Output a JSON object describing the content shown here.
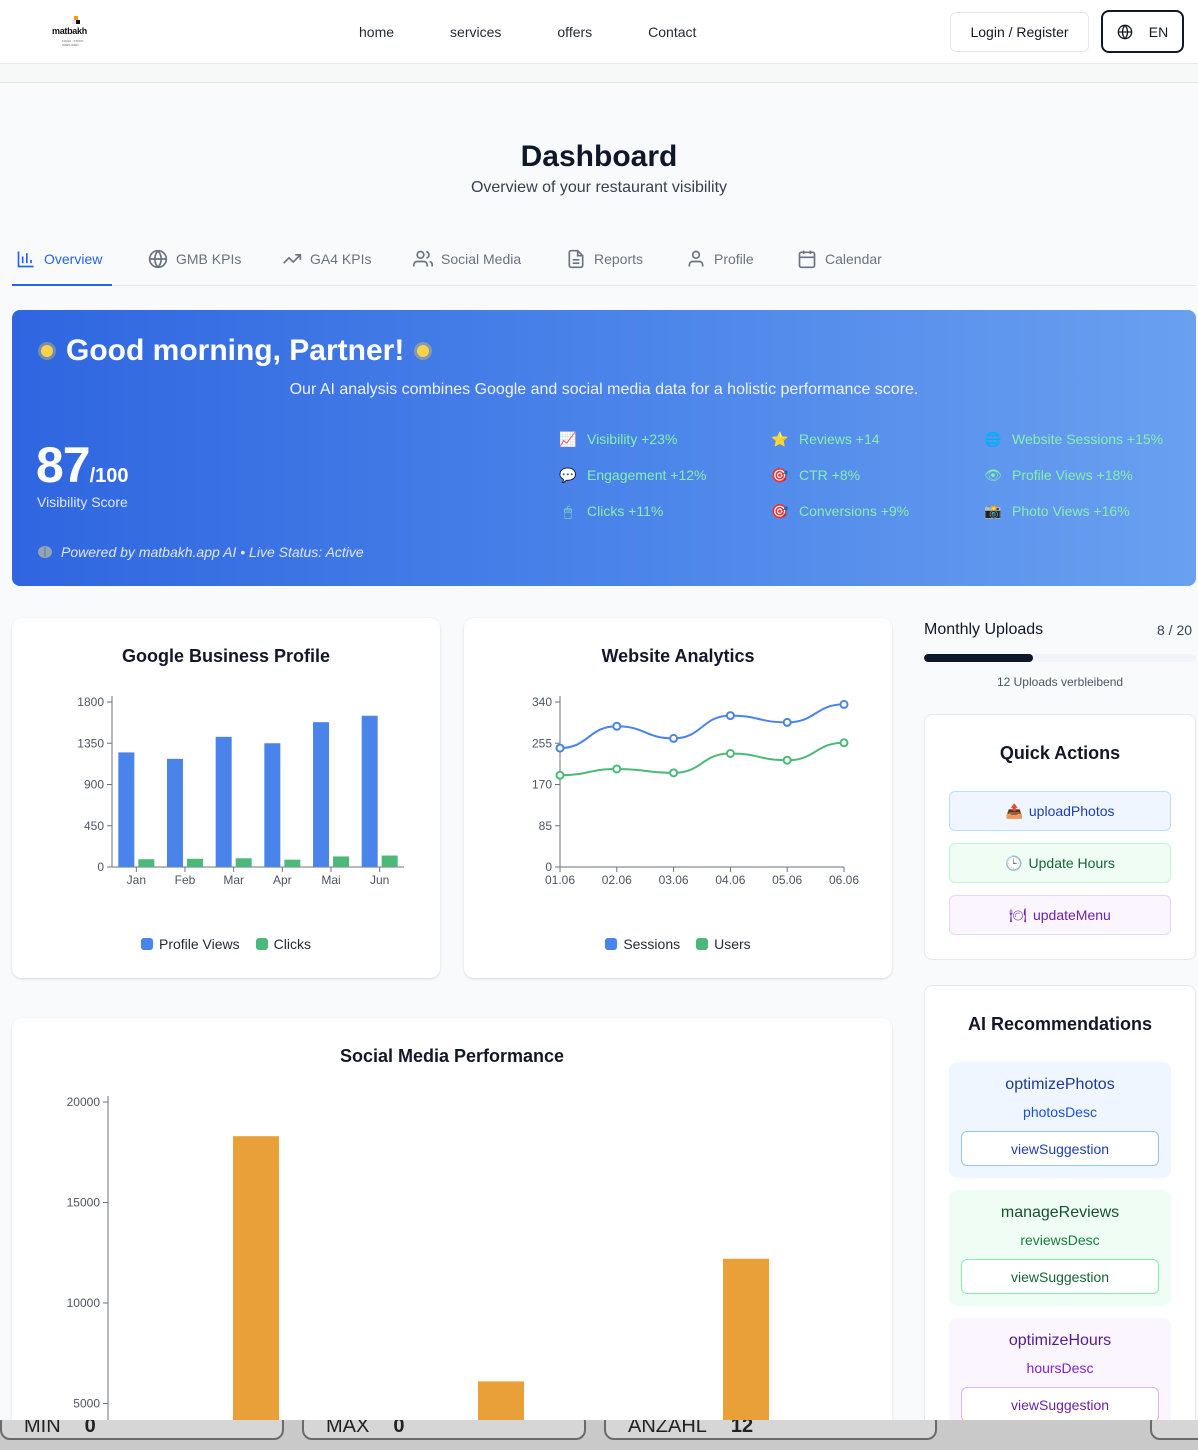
{
  "nav": {
    "logo_text": "matbakh",
    "logo_tagline": "FOOD · STORY · SIMPLIFIED",
    "links": [
      "home",
      "services",
      "offers",
      "Contact"
    ],
    "login_label": "Login / Register",
    "language": "EN"
  },
  "page": {
    "title": "Dashboard",
    "subtitle": "Overview of your restaurant visibility"
  },
  "tabs": [
    {
      "label": "Overview",
      "icon": "bar-chart-icon",
      "active": true
    },
    {
      "label": "GMB KPIs",
      "icon": "globe-icon"
    },
    {
      "label": "GA4 KPIs",
      "icon": "trending-up-icon"
    },
    {
      "label": "Social Media",
      "icon": "users-icon"
    },
    {
      "label": "Reports",
      "icon": "file-text-icon"
    },
    {
      "label": "Profile",
      "icon": "user-icon"
    },
    {
      "label": "Calendar",
      "icon": "calendar-icon"
    }
  ],
  "hero": {
    "greeting": "Good morning, Partner!",
    "description": "Our AI analysis combines Google and social media data for a holistic performance score.",
    "score": "87",
    "score_max": "/100",
    "score_label": "Visibility Score",
    "powered": "Powered by matbakh.app AI • Live Status: Active",
    "metrics": [
      {
        "icon": "chart-increasing-icon",
        "glyph": "📈",
        "label": "Visibility +23%"
      },
      {
        "icon": "star-icon",
        "glyph": "⭐",
        "label": "Reviews +14"
      },
      {
        "icon": "globe-icon",
        "glyph": "🌐",
        "label": "Website Sessions +15%"
      },
      {
        "icon": "speech-bubble-icon",
        "glyph": "💬",
        "label": "Engagement +12%"
      },
      {
        "icon": "target-icon",
        "glyph": "🎯",
        "label": "CTR +8%"
      },
      {
        "icon": "eye-icon",
        "glyph": "👁",
        "label": "Profile Views +18%"
      },
      {
        "icon": "mouse-icon",
        "glyph": "🖱",
        "label": "Clicks +11%"
      },
      {
        "icon": "target-icon",
        "glyph": "🎯",
        "label": "Conversions +9%"
      },
      {
        "icon": "camera-icon",
        "glyph": "📸",
        "label": "Photo Views +16%"
      }
    ]
  },
  "uploads": {
    "title": "Monthly Uploads",
    "count": "8 / 20",
    "progress": 0.4,
    "remaining": "12 Uploads verbleibend"
  },
  "quick_actions": {
    "title": "Quick Actions",
    "items": [
      {
        "label": "uploadPhotos",
        "glyph": "📤"
      },
      {
        "label": "Update Hours",
        "glyph": "🕒"
      },
      {
        "label": "updateMenu",
        "glyph": "🍽"
      }
    ]
  },
  "ai_recommendations": {
    "title": "AI Recommendations",
    "items": [
      {
        "title": "optimizePhotos",
        "desc": "photosDesc",
        "button": "viewSuggestion"
      },
      {
        "title": "manageReviews",
        "desc": "reviewsDesc",
        "button": "viewSuggestion"
      },
      {
        "title": "optimizeHours",
        "desc": "hoursDesc",
        "button": "viewSuggestion"
      }
    ]
  },
  "bottom_stats": [
    {
      "label": "MIN",
      "value": "0"
    },
    {
      "label": "MAX",
      "value": "0"
    },
    {
      "label": "ANZAHL",
      "value": "12"
    }
  ],
  "colors": {
    "primary": "#2563eb",
    "bar_blue": "#4a83ea",
    "bar_green": "#4cb87a",
    "bar_orange": "#e9a038"
  },
  "chart_data": [
    {
      "type": "bar",
      "title": "Google Business Profile",
      "categories": [
        "Jan",
        "Feb",
        "Mar",
        "Apr",
        "Mai",
        "Jun"
      ],
      "series": [
        {
          "name": "Profile Views",
          "values": [
            1250,
            1180,
            1420,
            1350,
            1580,
            1650
          ]
        },
        {
          "name": "Clicks",
          "values": [
            85,
            90,
            95,
            80,
            115,
            125
          ]
        }
      ],
      "yticks": [
        0,
        450,
        900,
        1350,
        1800
      ],
      "ylim": [
        0,
        1800
      ],
      "legend": "bottom"
    },
    {
      "type": "line",
      "title": "Website Analytics",
      "categories": [
        "01.06",
        "02.06",
        "03.06",
        "04.06",
        "05.06",
        "06.06"
      ],
      "series": [
        {
          "name": "Sessions",
          "values": [
            245,
            290,
            265,
            312,
            298,
            335
          ]
        },
        {
          "name": "Users",
          "values": [
            189,
            202,
            194,
            234,
            220,
            256
          ]
        }
      ],
      "yticks": [
        0,
        85,
        170,
        255,
        340
      ],
      "ylim": [
        0,
        340
      ],
      "legend": "bottom"
    },
    {
      "type": "bar",
      "title": "Social Media Performance",
      "categories": [
        "",
        "",
        ""
      ],
      "series": [
        {
          "name": "",
          "values": [
            18300,
            6100,
            12200
          ]
        }
      ],
      "yticks": [
        5000,
        10000,
        15000,
        20000
      ],
      "ylim": [
        0,
        20000
      ]
    }
  ]
}
